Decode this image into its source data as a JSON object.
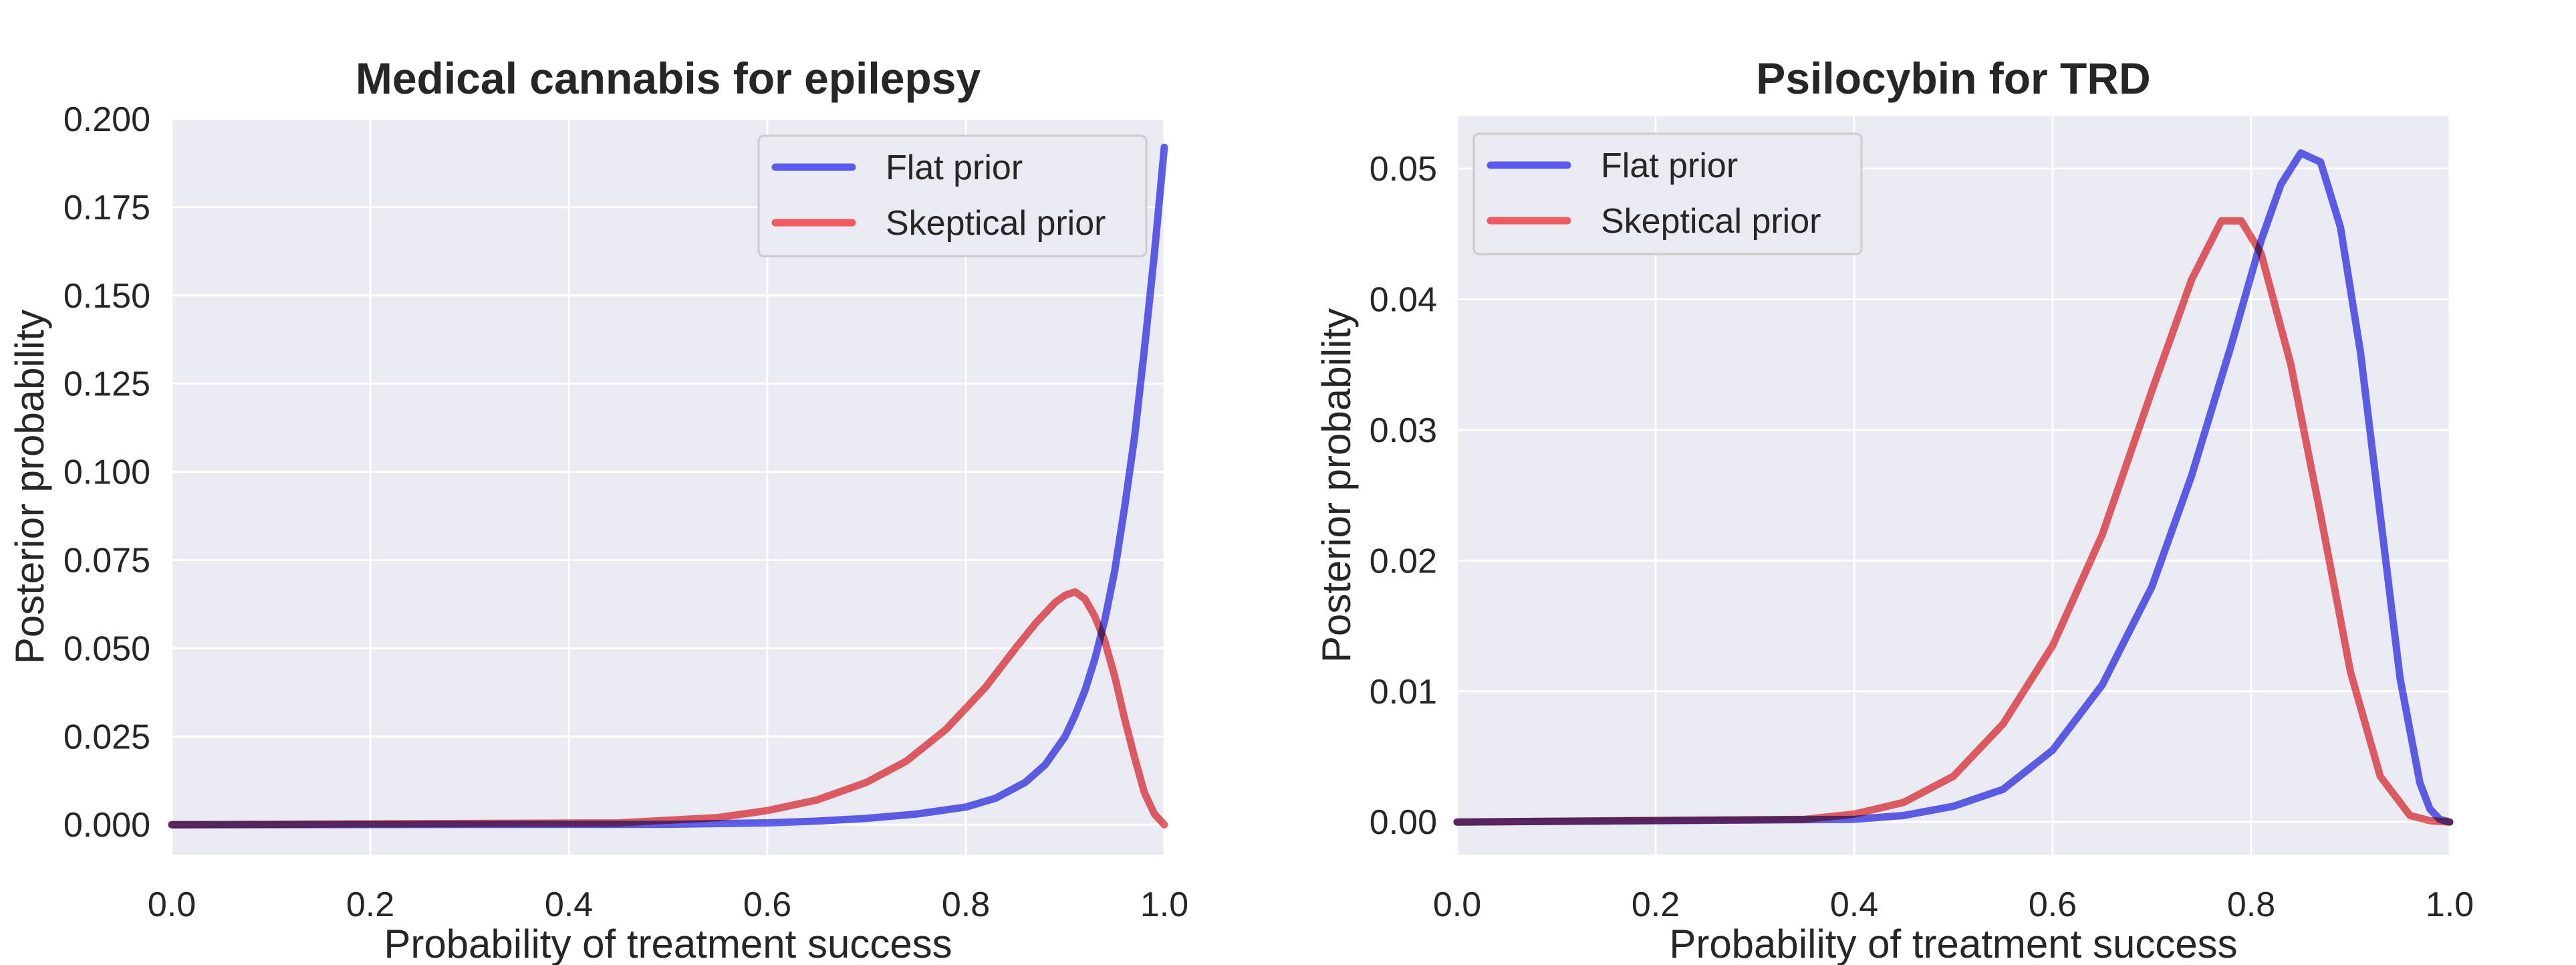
{
  "chart_data": [
    {
      "type": "line",
      "title": "Medical cannabis for epilepsy",
      "xlabel": "Probability of treatment success",
      "ylabel": "Posterior probability",
      "xlim": [
        0.0,
        1.0
      ],
      "ylim": [
        -0.0085,
        0.2
      ],
      "xticks": [
        "0.0",
        "0.2",
        "0.4",
        "0.6",
        "0.8",
        "1.0"
      ],
      "yticks": [
        "0.000",
        "0.025",
        "0.050",
        "0.075",
        "0.100",
        "0.125",
        "0.150",
        "0.175",
        "0.200"
      ],
      "grid": true,
      "legend_position": "upper-right",
      "series": [
        {
          "name": "Flat prior",
          "color": "#5a5aee",
          "x": [
            0.0,
            0.5,
            0.6,
            0.65,
            0.7,
            0.75,
            0.8,
            0.83,
            0.86,
            0.88,
            0.9,
            0.91,
            0.92,
            0.93,
            0.94,
            0.95,
            0.96,
            0.97,
            0.98,
            0.99,
            1.0
          ],
          "y": [
            0.0,
            0.0001,
            0.0005,
            0.001,
            0.0018,
            0.003,
            0.005,
            0.0075,
            0.012,
            0.017,
            0.025,
            0.031,
            0.038,
            0.047,
            0.058,
            0.072,
            0.09,
            0.11,
            0.135,
            0.162,
            0.192
          ]
        },
        {
          "name": "Skeptical prior",
          "color": "#ee5a5f",
          "x": [
            0.0,
            0.45,
            0.55,
            0.6,
            0.65,
            0.7,
            0.74,
            0.78,
            0.82,
            0.85,
            0.87,
            0.89,
            0.9,
            0.91,
            0.92,
            0.93,
            0.94,
            0.95,
            0.96,
            0.97,
            0.98,
            0.99,
            1.0
          ],
          "y": [
            0.0,
            0.0005,
            0.002,
            0.004,
            0.007,
            0.012,
            0.018,
            0.027,
            0.039,
            0.05,
            0.057,
            0.063,
            0.065,
            0.066,
            0.064,
            0.059,
            0.052,
            0.042,
            0.03,
            0.019,
            0.009,
            0.003,
            0.0
          ]
        }
      ]
    },
    {
      "type": "line",
      "title": "Psilocybin for TRD",
      "xlabel": "Probability of treatment success",
      "ylabel": "Posterior probability",
      "xlim": [
        0.0,
        1.0
      ],
      "ylim": [
        -0.0025,
        0.054
      ],
      "xticks": [
        "0.0",
        "0.2",
        "0.4",
        "0.6",
        "0.8",
        "1.0"
      ],
      "yticks": [
        "0.00",
        "0.01",
        "0.02",
        "0.03",
        "0.04",
        "0.05"
      ],
      "grid": true,
      "legend_position": "upper-left",
      "series": [
        {
          "name": "Flat prior",
          "color": "#5a5aee",
          "x": [
            0.0,
            0.4,
            0.45,
            0.5,
            0.55,
            0.6,
            0.65,
            0.7,
            0.74,
            0.78,
            0.81,
            0.83,
            0.85,
            0.87,
            0.89,
            0.91,
            0.93,
            0.95,
            0.97,
            0.98,
            0.99,
            1.0
          ],
          "y": [
            0.0,
            0.0002,
            0.0005,
            0.0012,
            0.0025,
            0.0055,
            0.0105,
            0.018,
            0.0265,
            0.0365,
            0.0445,
            0.0488,
            0.0512,
            0.0505,
            0.0455,
            0.036,
            0.0235,
            0.011,
            0.003,
            0.001,
            0.0002,
            0.0
          ]
        },
        {
          "name": "Skeptical prior",
          "color": "#ee5a5f",
          "x": [
            0.0,
            0.35,
            0.4,
            0.45,
            0.5,
            0.55,
            0.6,
            0.65,
            0.7,
            0.74,
            0.77,
            0.79,
            0.81,
            0.84,
            0.87,
            0.9,
            0.93,
            0.96,
            0.98,
            1.0
          ],
          "y": [
            0.0,
            0.0002,
            0.0006,
            0.0015,
            0.0035,
            0.0075,
            0.0135,
            0.022,
            0.033,
            0.0415,
            0.046,
            0.046,
            0.0435,
            0.035,
            0.0235,
            0.0115,
            0.0035,
            0.0005,
            0.0001,
            0.0
          ]
        }
      ]
    }
  ]
}
